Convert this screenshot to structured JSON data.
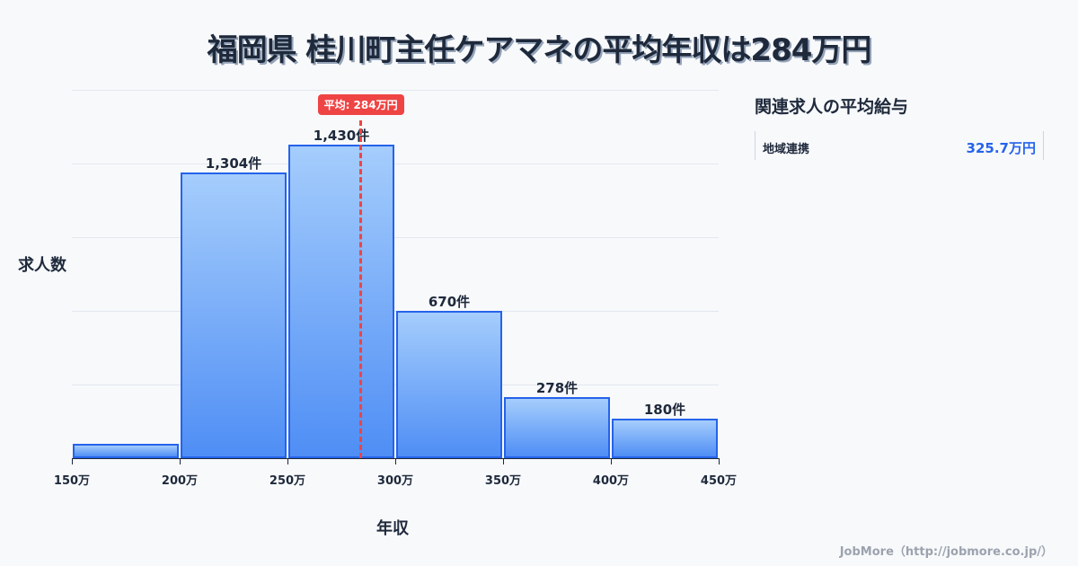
{
  "title": "福岡県 桂川町主任ケアマネの平均年収は284万円",
  "axes": {
    "ylabel": "求人数",
    "xlabel": "年収"
  },
  "mean": {
    "label": "平均: 284万円",
    "value": 284,
    "color": "#ef4444"
  },
  "sidebar": {
    "title": "関連求人の平均給与",
    "items": [
      {
        "name": "地域連携",
        "value": "325.7万円"
      }
    ]
  },
  "footer": "JobMore（http://jobmore.co.jp/）",
  "colors": {
    "bar_border": "#2563eb",
    "bar_top": "#a5cdfc",
    "bar_bottom": "#4f8ef5",
    "accent": "#2563eb"
  },
  "chart_data": {
    "type": "bar",
    "title": "福岡県 桂川町主任ケアマネの平均年収は284万円",
    "xlabel": "年収",
    "ylabel": "求人数",
    "bins": [
      "150万",
      "200万",
      "250万",
      "300万",
      "350万",
      "400万",
      "450万"
    ],
    "categories": [
      "150-200万",
      "200-250万",
      "250-300万",
      "300-350万",
      "350-400万",
      "400-450万"
    ],
    "values": [
      66,
      1304,
      1430,
      670,
      278,
      180
    ],
    "value_labels": [
      "",
      "1,304件",
      "1,430件",
      "670件",
      "278件",
      "180件"
    ],
    "mean_line": 284,
    "ylim": [
      0,
      1680
    ],
    "grid": true,
    "legend": null
  }
}
